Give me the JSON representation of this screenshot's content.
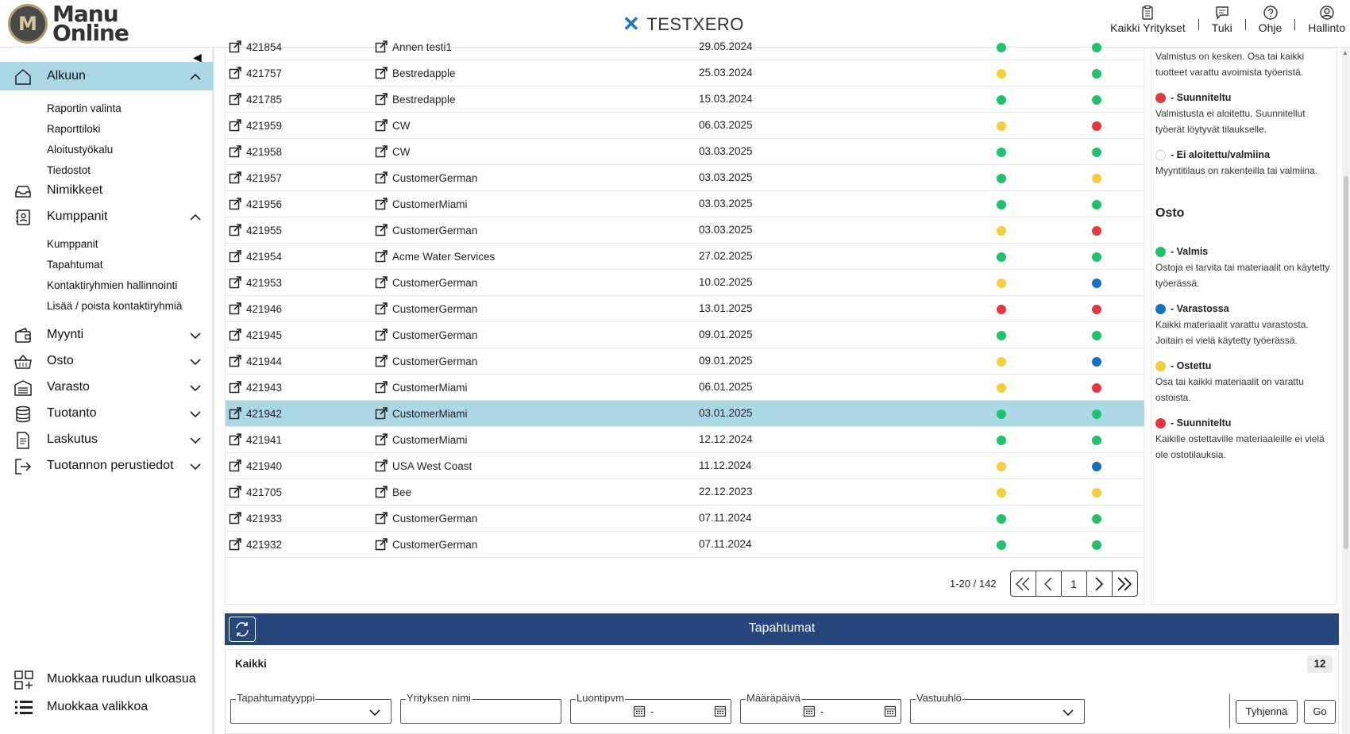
{
  "header": {
    "logo_line1": "Manu",
    "logo_line2": "Online",
    "company": "TESTXERO",
    "nav": [
      {
        "label": "Kaikki Yritykset",
        "icon": "clipboard-icon"
      },
      {
        "label": "Tuki",
        "icon": "chat-icon"
      },
      {
        "label": "Ohje",
        "icon": "help-icon"
      },
      {
        "label": "Hallinto",
        "icon": "user-icon"
      }
    ]
  },
  "sidebar": {
    "items": [
      {
        "label": "Alkuun",
        "icon": "home-icon",
        "active": true,
        "expanded": true
      },
      {
        "label": "Nimikkeet",
        "icon": "inbox-icon"
      },
      {
        "label": "Kumppanit",
        "icon": "contacts-icon",
        "expanded": true
      },
      {
        "label": "Myynti",
        "icon": "wallet-icon"
      },
      {
        "label": "Osto",
        "icon": "basket-icon"
      },
      {
        "label": "Varasto",
        "icon": "warehouse-icon"
      },
      {
        "label": "Tuotanto",
        "icon": "database-icon"
      },
      {
        "label": "Laskutus",
        "icon": "document-icon"
      },
      {
        "label": "Tuotannon perustiedot",
        "icon": "exit-icon"
      }
    ],
    "alkuun_sub": [
      "Raportin valinta",
      "Raporttiloki",
      "Aloitustyökalu",
      "Tiedostot"
    ],
    "kumppanit_sub": [
      "Kumppanit",
      "Tapahtumat",
      "Kontaktiryhmien hallinnointi",
      "Lisää / poista kontaktiryhmiä"
    ],
    "bottom": [
      {
        "label": "Muokkaa ruudun ulkoasua",
        "icon": "layout-icon"
      },
      {
        "label": "Muokkaa valikkoa",
        "icon": "list-icon"
      }
    ]
  },
  "colors": {
    "green": "#1ec26a",
    "yellow": "#f7cb3a",
    "red": "#e8363b",
    "blue": "#1570c0",
    "selected": "#acd8e6",
    "panel": "#26477b"
  },
  "table": {
    "rows": [
      {
        "id": "421854",
        "customer": "Annen testi1",
        "date": "29.05.2024",
        "s1": "green",
        "s2": "green"
      },
      {
        "id": "421757",
        "customer": "Bestredapple",
        "date": "25.03.2024",
        "s1": "yellow",
        "s2": "green"
      },
      {
        "id": "421785",
        "customer": "Bestredapple",
        "date": "15.03.2024",
        "s1": "green",
        "s2": "green"
      },
      {
        "id": "421959",
        "customer": "CW",
        "date": "06.03.2025",
        "s1": "yellow",
        "s2": "red"
      },
      {
        "id": "421958",
        "customer": "CW",
        "date": "03.03.2025",
        "s1": "green",
        "s2": "green"
      },
      {
        "id": "421957",
        "customer": "CustomerGerman",
        "date": "03.03.2025",
        "s1": "green",
        "s2": "yellow"
      },
      {
        "id": "421956",
        "customer": "CustomerMiami",
        "date": "03.03.2025",
        "s1": "green",
        "s2": "green"
      },
      {
        "id": "421955",
        "customer": "CustomerGerman",
        "date": "03.03.2025",
        "s1": "yellow",
        "s2": "red"
      },
      {
        "id": "421954",
        "customer": "Acme Water Services",
        "date": "27.02.2025",
        "s1": "green",
        "s2": "green"
      },
      {
        "id": "421953",
        "customer": "CustomerGerman",
        "date": "10.02.2025",
        "s1": "yellow",
        "s2": "blue"
      },
      {
        "id": "421946",
        "customer": "CustomerGerman",
        "date": "13.01.2025",
        "s1": "red",
        "s2": "red"
      },
      {
        "id": "421945",
        "customer": "CustomerGerman",
        "date": "09.01.2025",
        "s1": "green",
        "s2": "green"
      },
      {
        "id": "421944",
        "customer": "CustomerGerman",
        "date": "09.01.2025",
        "s1": "yellow",
        "s2": "blue"
      },
      {
        "id": "421943",
        "customer": "CustomerMiami",
        "date": "06.01.2025",
        "s1": "yellow",
        "s2": "red"
      },
      {
        "id": "421942",
        "customer": "CustomerMiami",
        "date": "03.01.2025",
        "s1": "green",
        "s2": "green",
        "selected": true
      },
      {
        "id": "421941",
        "customer": "CustomerMiami",
        "date": "12.12.2024",
        "s1": "green",
        "s2": "green"
      },
      {
        "id": "421940",
        "customer": "USA West Coast",
        "date": "11.12.2024",
        "s1": "yellow",
        "s2": "blue"
      },
      {
        "id": "421705",
        "customer": "Bee",
        "date": "22.12.2023",
        "s1": "yellow",
        "s2": "yellow"
      },
      {
        "id": "421933",
        "customer": "CustomerGerman",
        "date": "07.11.2024",
        "s1": "green",
        "s2": "green"
      },
      {
        "id": "421932",
        "customer": "CustomerGerman",
        "date": "07.11.2024",
        "s1": "green",
        "s2": "green"
      }
    ],
    "pager": {
      "range": "1-20 / 142",
      "page": "1"
    }
  },
  "legend": {
    "top_text": "Valmistus on kesken. Osa tai kaikki tuotteet varattu avoimista työeristä.",
    "entries_a": [
      {
        "color": "red",
        "title": "- Suunniteltu",
        "text": "Valmistusta ei aloitettu. Suunnitellut työerät löytyvät tilaukselle."
      },
      {
        "color": "white",
        "title": "- Ei aloitettu/valmiina",
        "text": "Myyntitilaus on rakenteilla tai valmiina."
      }
    ],
    "osto_title": "Osto",
    "entries_b": [
      {
        "color": "green",
        "title": "- Valmis",
        "text": "Ostoja ei tarvita tai materiaalit on käytetty työerässä."
      },
      {
        "color": "blue",
        "title": "- Varastossa",
        "text": "Kaikki materiaalit varattu varastosta. Joitain ei vielä käytetty työerässä."
      },
      {
        "color": "yellow",
        "title": "- Ostettu",
        "text": "Osa tai kaikki materiaalit on varattu ostoista."
      },
      {
        "color": "red",
        "title": "- Suunniteltu",
        "text": "Kaikille ostettaville materiaaleille ei vielä ole ostotilauksia."
      }
    ]
  },
  "events": {
    "title": "Tapahtumat",
    "all_label": "Kaikki",
    "count": "12",
    "filters": {
      "type_label": "Tapahtumatyyppi",
      "company_label": "Yrityksen nimi",
      "created_label": "Luontipvm",
      "due_label": "Määräpäivä",
      "owner_label": "Vastuuhlö",
      "date_sep": "-"
    },
    "clear_label": "Tyhjennä",
    "go_label": "Go"
  }
}
